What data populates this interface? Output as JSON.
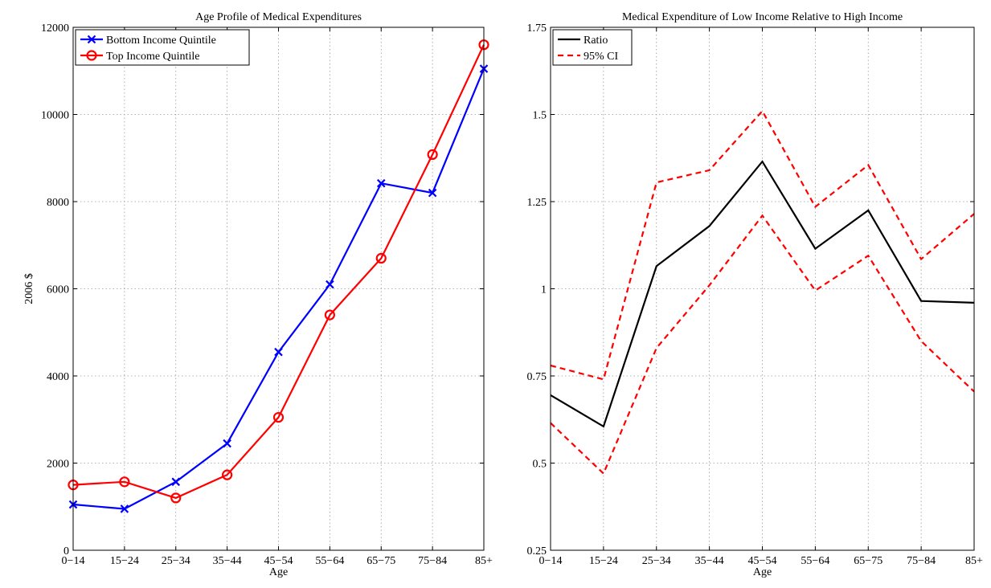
{
  "chart_data": [
    {
      "type": "line",
      "title": "Age Profile of Medical Expenditures",
      "xlabel": "Age",
      "ylabel": "2006 $",
      "categories": [
        "0−14",
        "15−24",
        "25−34",
        "35−44",
        "45−54",
        "55−64",
        "65−75",
        "75−84",
        "85+"
      ],
      "ylim": [
        0,
        12000
      ],
      "yticks": [
        0,
        2000,
        4000,
        6000,
        8000,
        10000,
        12000
      ],
      "yticklabels": [
        "0",
        "2000",
        "4000",
        "6000",
        "8000",
        "10000",
        "12000"
      ],
      "grid": true,
      "legend_position": "top-left",
      "series": [
        {
          "name": "Bottom Income Quintile",
          "color": "#0000ff",
          "marker": "x",
          "values": [
            1050,
            950,
            1570,
            2450,
            4550,
            6100,
            8420,
            8200,
            11050
          ]
        },
        {
          "name": "Top Income Quintile",
          "color": "#ff0000",
          "marker": "o",
          "values": [
            1500,
            1570,
            1200,
            1730,
            3050,
            5400,
            6700,
            9080,
            11600
          ]
        }
      ]
    },
    {
      "type": "line",
      "title": "Medical Expenditure of Low Income Relative to High Income",
      "xlabel": "Age",
      "ylabel": "",
      "categories": [
        "0−14",
        "15−24",
        "25−34",
        "35−44",
        "45−54",
        "55−64",
        "65−75",
        "75−84",
        "85+"
      ],
      "ylim": [
        0.25,
        1.75
      ],
      "yticks": [
        0.25,
        0.5,
        0.75,
        1,
        1.25,
        1.5,
        1.75
      ],
      "yticklabels": [
        "0.25",
        "0.5",
        "0.75",
        "1",
        "1.25",
        "1.5",
        "1.75"
      ],
      "grid": true,
      "legend_position": "top-left",
      "series": [
        {
          "name": "Ratio",
          "color": "#000000",
          "dash": "solid",
          "values": [
            0.695,
            0.605,
            1.065,
            1.18,
            1.365,
            1.115,
            1.225,
            0.965,
            0.96
          ]
        },
        {
          "name": "95% CI",
          "color": "#ff0000",
          "dash": "dashed",
          "values": [
            0.78,
            0.74,
            1.305,
            1.34,
            1.51,
            1.235,
            1.355,
            1.085,
            1.215
          ]
        },
        {
          "name": "",
          "color": "#ff0000",
          "dash": "dashed",
          "values": [
            0.615,
            0.47,
            0.83,
            1.01,
            1.21,
            0.995,
            1.095,
            0.85,
            0.705
          ]
        }
      ]
    }
  ]
}
